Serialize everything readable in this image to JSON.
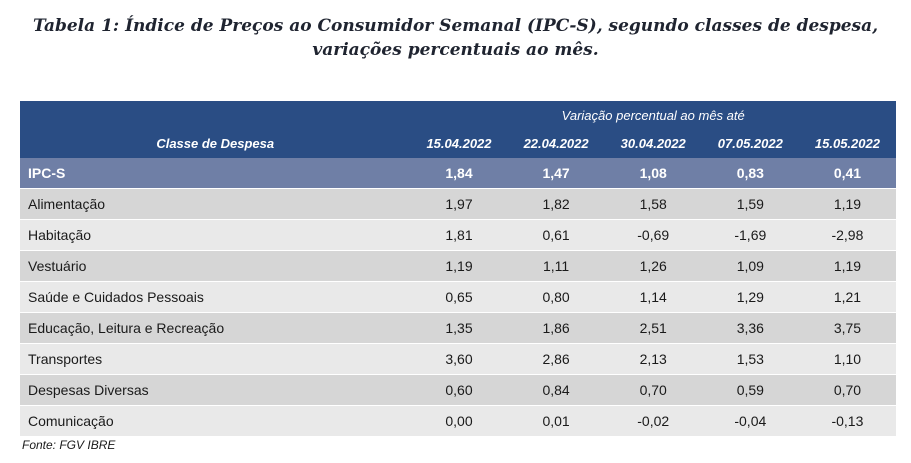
{
  "title": {
    "line1": "Tabela 1: Índice de Preços ao Consumidor Semanal (IPC-S), segundo classes de despesa,",
    "line2": "variações percentuais ao mês."
  },
  "table": {
    "group_header": "Variação percentual ao mês até",
    "first_column_header": "Classe de Despesa",
    "columns": [
      "15.04.2022",
      "22.04.2022",
      "30.04.2022",
      "07.05.2022",
      "15.05.2022"
    ],
    "rows": [
      {
        "label": "IPC-S",
        "values": [
          "1,84",
          "1,47",
          "1,08",
          "0,83",
          "0,41"
        ]
      },
      {
        "label": "Alimentação",
        "values": [
          "1,97",
          "1,82",
          "1,58",
          "1,59",
          "1,19"
        ]
      },
      {
        "label": "Habitação",
        "values": [
          "1,81",
          "0,61",
          "-0,69",
          "-1,69",
          "-2,98"
        ]
      },
      {
        "label": "Vestuário",
        "values": [
          "1,19",
          "1,11",
          "1,26",
          "1,09",
          "1,19"
        ]
      },
      {
        "label": "Saúde e Cuidados Pessoais",
        "values": [
          "0,65",
          "0,80",
          "1,14",
          "1,29",
          "1,21"
        ]
      },
      {
        "label": "Educação, Leitura e Recreação",
        "values": [
          "1,35",
          "1,86",
          "2,51",
          "3,36",
          "3,75"
        ]
      },
      {
        "label": "Transportes",
        "values": [
          "3,60",
          "2,86",
          "2,13",
          "1,53",
          "1,10"
        ]
      },
      {
        "label": "Despesas Diversas",
        "values": [
          "0,60",
          "0,84",
          "0,70",
          "0,59",
          "0,70"
        ]
      },
      {
        "label": "Comunicação",
        "values": [
          "0,00",
          "0,01",
          "-0,02",
          "-0,04",
          "-0,13"
        ]
      }
    ]
  },
  "source": "Fonte: FGV IBRE",
  "colors": {
    "header_bg": "#2a4d84",
    "highlight_row_bg": "#6f7fa6",
    "row_dark": "#d6d6d6",
    "row_light": "#e9e9e9"
  }
}
